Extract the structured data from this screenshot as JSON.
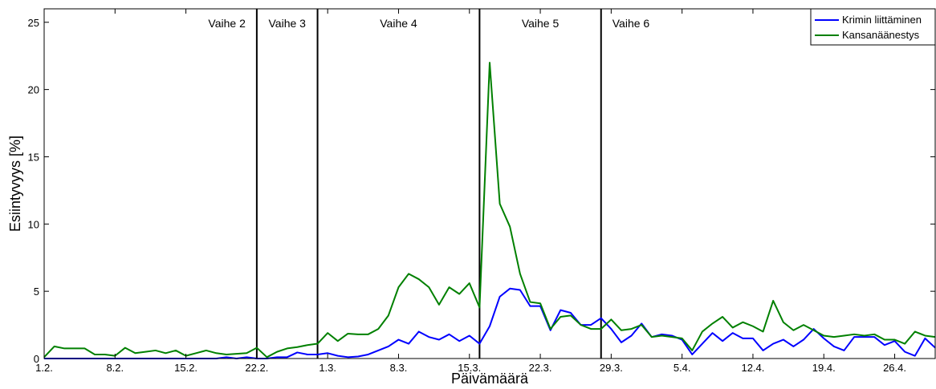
{
  "chart_data": {
    "type": "line",
    "title": "",
    "xlabel": "Päivämäärä",
    "ylabel": "Esiintyvyys [%]",
    "ylim": [
      0,
      26
    ],
    "yticks": [
      0,
      5,
      10,
      15,
      20,
      25
    ],
    "xlim": [
      "2014-02-01",
      "2014-04-30"
    ],
    "xticks": [
      {
        "date": "2014-02-01",
        "label": "1.2."
      },
      {
        "date": "2014-02-08",
        "label": "8.2."
      },
      {
        "date": "2014-02-15",
        "label": "15.2."
      },
      {
        "date": "2014-02-22",
        "label": "22.2."
      },
      {
        "date": "2014-03-01",
        "label": "1.3."
      },
      {
        "date": "2014-03-08",
        "label": "8.3."
      },
      {
        "date": "2014-03-15",
        "label": "15.3."
      },
      {
        "date": "2014-03-22",
        "label": "22.3."
      },
      {
        "date": "2014-03-29",
        "label": "29.3."
      },
      {
        "date": "2014-04-05",
        "label": "5.4."
      },
      {
        "date": "2014-04-12",
        "label": "12.4."
      },
      {
        "date": "2014-04-19",
        "label": "19.4."
      },
      {
        "date": "2014-04-26",
        "label": "26.4."
      }
    ],
    "grid": false,
    "legend_position": "top-right",
    "phases": [
      {
        "label": "Vaihe 2",
        "end": "2014-02-22"
      },
      {
        "label": "Vaihe 3",
        "end": "2014-02-28"
      },
      {
        "label": "Vaihe 4",
        "end": "2014-03-16"
      },
      {
        "label": "Vaihe 5",
        "end": "2014-03-28"
      },
      {
        "label": "Vaihe 6",
        "end": ""
      }
    ],
    "series": [
      {
        "name": "Krimin liittäminen",
        "color": "#0000ff",
        "points": [
          [
            "2014-02-01",
            0
          ],
          [
            "2014-02-02",
            0
          ],
          [
            "2014-02-03",
            0
          ],
          [
            "2014-02-04",
            0
          ],
          [
            "2014-02-05",
            0
          ],
          [
            "2014-02-06",
            0
          ],
          [
            "2014-02-07",
            0
          ],
          [
            "2014-02-08",
            0
          ],
          [
            "2014-02-09",
            0
          ],
          [
            "2014-02-10",
            0
          ],
          [
            "2014-02-11",
            0
          ],
          [
            "2014-02-12",
            0
          ],
          [
            "2014-02-13",
            0
          ],
          [
            "2014-02-14",
            0
          ],
          [
            "2014-02-15",
            0
          ],
          [
            "2014-02-16",
            0
          ],
          [
            "2014-02-17",
            0
          ],
          [
            "2014-02-18",
            0
          ],
          [
            "2014-02-19",
            0.1
          ],
          [
            "2014-02-20",
            0
          ],
          [
            "2014-02-21",
            0.1
          ],
          [
            "2014-02-22",
            0
          ],
          [
            "2014-02-23",
            0
          ],
          [
            "2014-02-24",
            0.1
          ],
          [
            "2014-02-25",
            0.1
          ],
          [
            "2014-02-26",
            0.45
          ],
          [
            "2014-02-27",
            0.3
          ],
          [
            "2014-02-28",
            0.3
          ],
          [
            "2014-03-01",
            0.4
          ],
          [
            "2014-03-02",
            0.2
          ],
          [
            "2014-03-03",
            0.1
          ],
          [
            "2014-03-04",
            0.15
          ],
          [
            "2014-03-05",
            0.3
          ],
          [
            "2014-03-06",
            0.6
          ],
          [
            "2014-03-07",
            0.9
          ],
          [
            "2014-03-08",
            1.4
          ],
          [
            "2014-03-09",
            1.1
          ],
          [
            "2014-03-10",
            2.0
          ],
          [
            "2014-03-11",
            1.6
          ],
          [
            "2014-03-12",
            1.4
          ],
          [
            "2014-03-13",
            1.8
          ],
          [
            "2014-03-14",
            1.3
          ],
          [
            "2014-03-15",
            1.7
          ],
          [
            "2014-03-16",
            1.1
          ],
          [
            "2014-03-17",
            2.4
          ],
          [
            "2014-03-18",
            4.6
          ],
          [
            "2014-03-19",
            5.2
          ],
          [
            "2014-03-20",
            5.1
          ],
          [
            "2014-03-21",
            3.9
          ],
          [
            "2014-03-22",
            3.9
          ],
          [
            "2014-03-23",
            2.1
          ],
          [
            "2014-03-24",
            3.6
          ],
          [
            "2014-03-25",
            3.4
          ],
          [
            "2014-03-26",
            2.5
          ],
          [
            "2014-03-27",
            2.5
          ],
          [
            "2014-03-28",
            3.0
          ],
          [
            "2014-03-29",
            2.2
          ],
          [
            "2014-03-30",
            1.2
          ],
          [
            "2014-03-31",
            1.7
          ],
          [
            "2014-04-01",
            2.6
          ],
          [
            "2014-04-02",
            1.6
          ],
          [
            "2014-04-03",
            1.8
          ],
          [
            "2014-04-04",
            1.7
          ],
          [
            "2014-04-05",
            1.4
          ],
          [
            "2014-04-06",
            0.3
          ],
          [
            "2014-04-07",
            1.1
          ],
          [
            "2014-04-08",
            1.9
          ],
          [
            "2014-04-09",
            1.3
          ],
          [
            "2014-04-10",
            1.9
          ],
          [
            "2014-04-11",
            1.5
          ],
          [
            "2014-04-12",
            1.5
          ],
          [
            "2014-04-13",
            0.6
          ],
          [
            "2014-04-14",
            1.1
          ],
          [
            "2014-04-15",
            1.4
          ],
          [
            "2014-04-16",
            0.9
          ],
          [
            "2014-04-17",
            1.4
          ],
          [
            "2014-04-18",
            2.2
          ],
          [
            "2014-04-19",
            1.5
          ],
          [
            "2014-04-20",
            0.9
          ],
          [
            "2014-04-21",
            0.6
          ],
          [
            "2014-04-22",
            1.6
          ],
          [
            "2014-04-23",
            1.6
          ],
          [
            "2014-04-24",
            1.6
          ],
          [
            "2014-04-25",
            1.0
          ],
          [
            "2014-04-26",
            1.3
          ],
          [
            "2014-04-27",
            0.5
          ],
          [
            "2014-04-28",
            0.2
          ],
          [
            "2014-04-29",
            1.5
          ],
          [
            "2014-04-30",
            0.8
          ]
        ]
      },
      {
        "name": "Kansanäänestys",
        "color": "#008000",
        "points": [
          [
            "2014-02-01",
            0.1
          ],
          [
            "2014-02-02",
            0.9
          ],
          [
            "2014-02-03",
            0.75
          ],
          [
            "2014-02-04",
            0.75
          ],
          [
            "2014-02-05",
            0.75
          ],
          [
            "2014-02-06",
            0.3
          ],
          [
            "2014-02-07",
            0.3
          ],
          [
            "2014-02-08",
            0.2
          ],
          [
            "2014-02-09",
            0.8
          ],
          [
            "2014-02-10",
            0.4
          ],
          [
            "2014-02-11",
            0.5
          ],
          [
            "2014-02-12",
            0.6
          ],
          [
            "2014-02-13",
            0.4
          ],
          [
            "2014-02-14",
            0.6
          ],
          [
            "2014-02-15",
            0.2
          ],
          [
            "2014-02-16",
            0.4
          ],
          [
            "2014-02-17",
            0.6
          ],
          [
            "2014-02-18",
            0.4
          ],
          [
            "2014-02-19",
            0.3
          ],
          [
            "2014-02-20",
            0.35
          ],
          [
            "2014-02-21",
            0.4
          ],
          [
            "2014-02-22",
            0.8
          ],
          [
            "2014-02-23",
            0.1
          ],
          [
            "2014-02-24",
            0.5
          ],
          [
            "2014-02-25",
            0.75
          ],
          [
            "2014-02-26",
            0.85
          ],
          [
            "2014-02-27",
            1.0
          ],
          [
            "2014-02-28",
            1.1
          ],
          [
            "2014-03-01",
            1.9
          ],
          [
            "2014-03-02",
            1.3
          ],
          [
            "2014-03-03",
            1.85
          ],
          [
            "2014-03-04",
            1.8
          ],
          [
            "2014-03-05",
            1.8
          ],
          [
            "2014-03-06",
            2.2
          ],
          [
            "2014-03-07",
            3.2
          ],
          [
            "2014-03-08",
            5.3
          ],
          [
            "2014-03-09",
            6.3
          ],
          [
            "2014-03-10",
            5.9
          ],
          [
            "2014-03-11",
            5.3
          ],
          [
            "2014-03-12",
            4.0
          ],
          [
            "2014-03-13",
            5.3
          ],
          [
            "2014-03-14",
            4.8
          ],
          [
            "2014-03-15",
            5.6
          ],
          [
            "2014-03-16",
            3.8
          ],
          [
            "2014-03-17",
            22.0
          ],
          [
            "2014-03-18",
            11.5
          ],
          [
            "2014-03-19",
            9.8
          ],
          [
            "2014-03-20",
            6.3
          ],
          [
            "2014-03-21",
            4.2
          ],
          [
            "2014-03-22",
            4.1
          ],
          [
            "2014-03-23",
            2.2
          ],
          [
            "2014-03-24",
            3.1
          ],
          [
            "2014-03-25",
            3.2
          ],
          [
            "2014-03-26",
            2.5
          ],
          [
            "2014-03-27",
            2.2
          ],
          [
            "2014-03-28",
            2.2
          ],
          [
            "2014-03-29",
            2.9
          ],
          [
            "2014-03-30",
            2.1
          ],
          [
            "2014-03-31",
            2.2
          ],
          [
            "2014-04-01",
            2.5
          ],
          [
            "2014-04-02",
            1.6
          ],
          [
            "2014-04-03",
            1.7
          ],
          [
            "2014-04-04",
            1.6
          ],
          [
            "2014-04-05",
            1.5
          ],
          [
            "2014-04-06",
            0.6
          ],
          [
            "2014-04-07",
            2.0
          ],
          [
            "2014-04-08",
            2.6
          ],
          [
            "2014-04-09",
            3.1
          ],
          [
            "2014-04-10",
            2.3
          ],
          [
            "2014-04-11",
            2.7
          ],
          [
            "2014-04-12",
            2.4
          ],
          [
            "2014-04-13",
            2.0
          ],
          [
            "2014-04-14",
            4.3
          ],
          [
            "2014-04-15",
            2.7
          ],
          [
            "2014-04-16",
            2.1
          ],
          [
            "2014-04-17",
            2.5
          ],
          [
            "2014-04-18",
            2.1
          ],
          [
            "2014-04-19",
            1.7
          ],
          [
            "2014-04-20",
            1.6
          ],
          [
            "2014-04-21",
            1.7
          ],
          [
            "2014-04-22",
            1.8
          ],
          [
            "2014-04-23",
            1.7
          ],
          [
            "2014-04-24",
            1.8
          ],
          [
            "2014-04-25",
            1.4
          ],
          [
            "2014-04-26",
            1.4
          ],
          [
            "2014-04-27",
            1.1
          ],
          [
            "2014-04-28",
            2.0
          ],
          [
            "2014-04-29",
            1.7
          ],
          [
            "2014-04-30",
            1.6
          ]
        ]
      }
    ]
  }
}
